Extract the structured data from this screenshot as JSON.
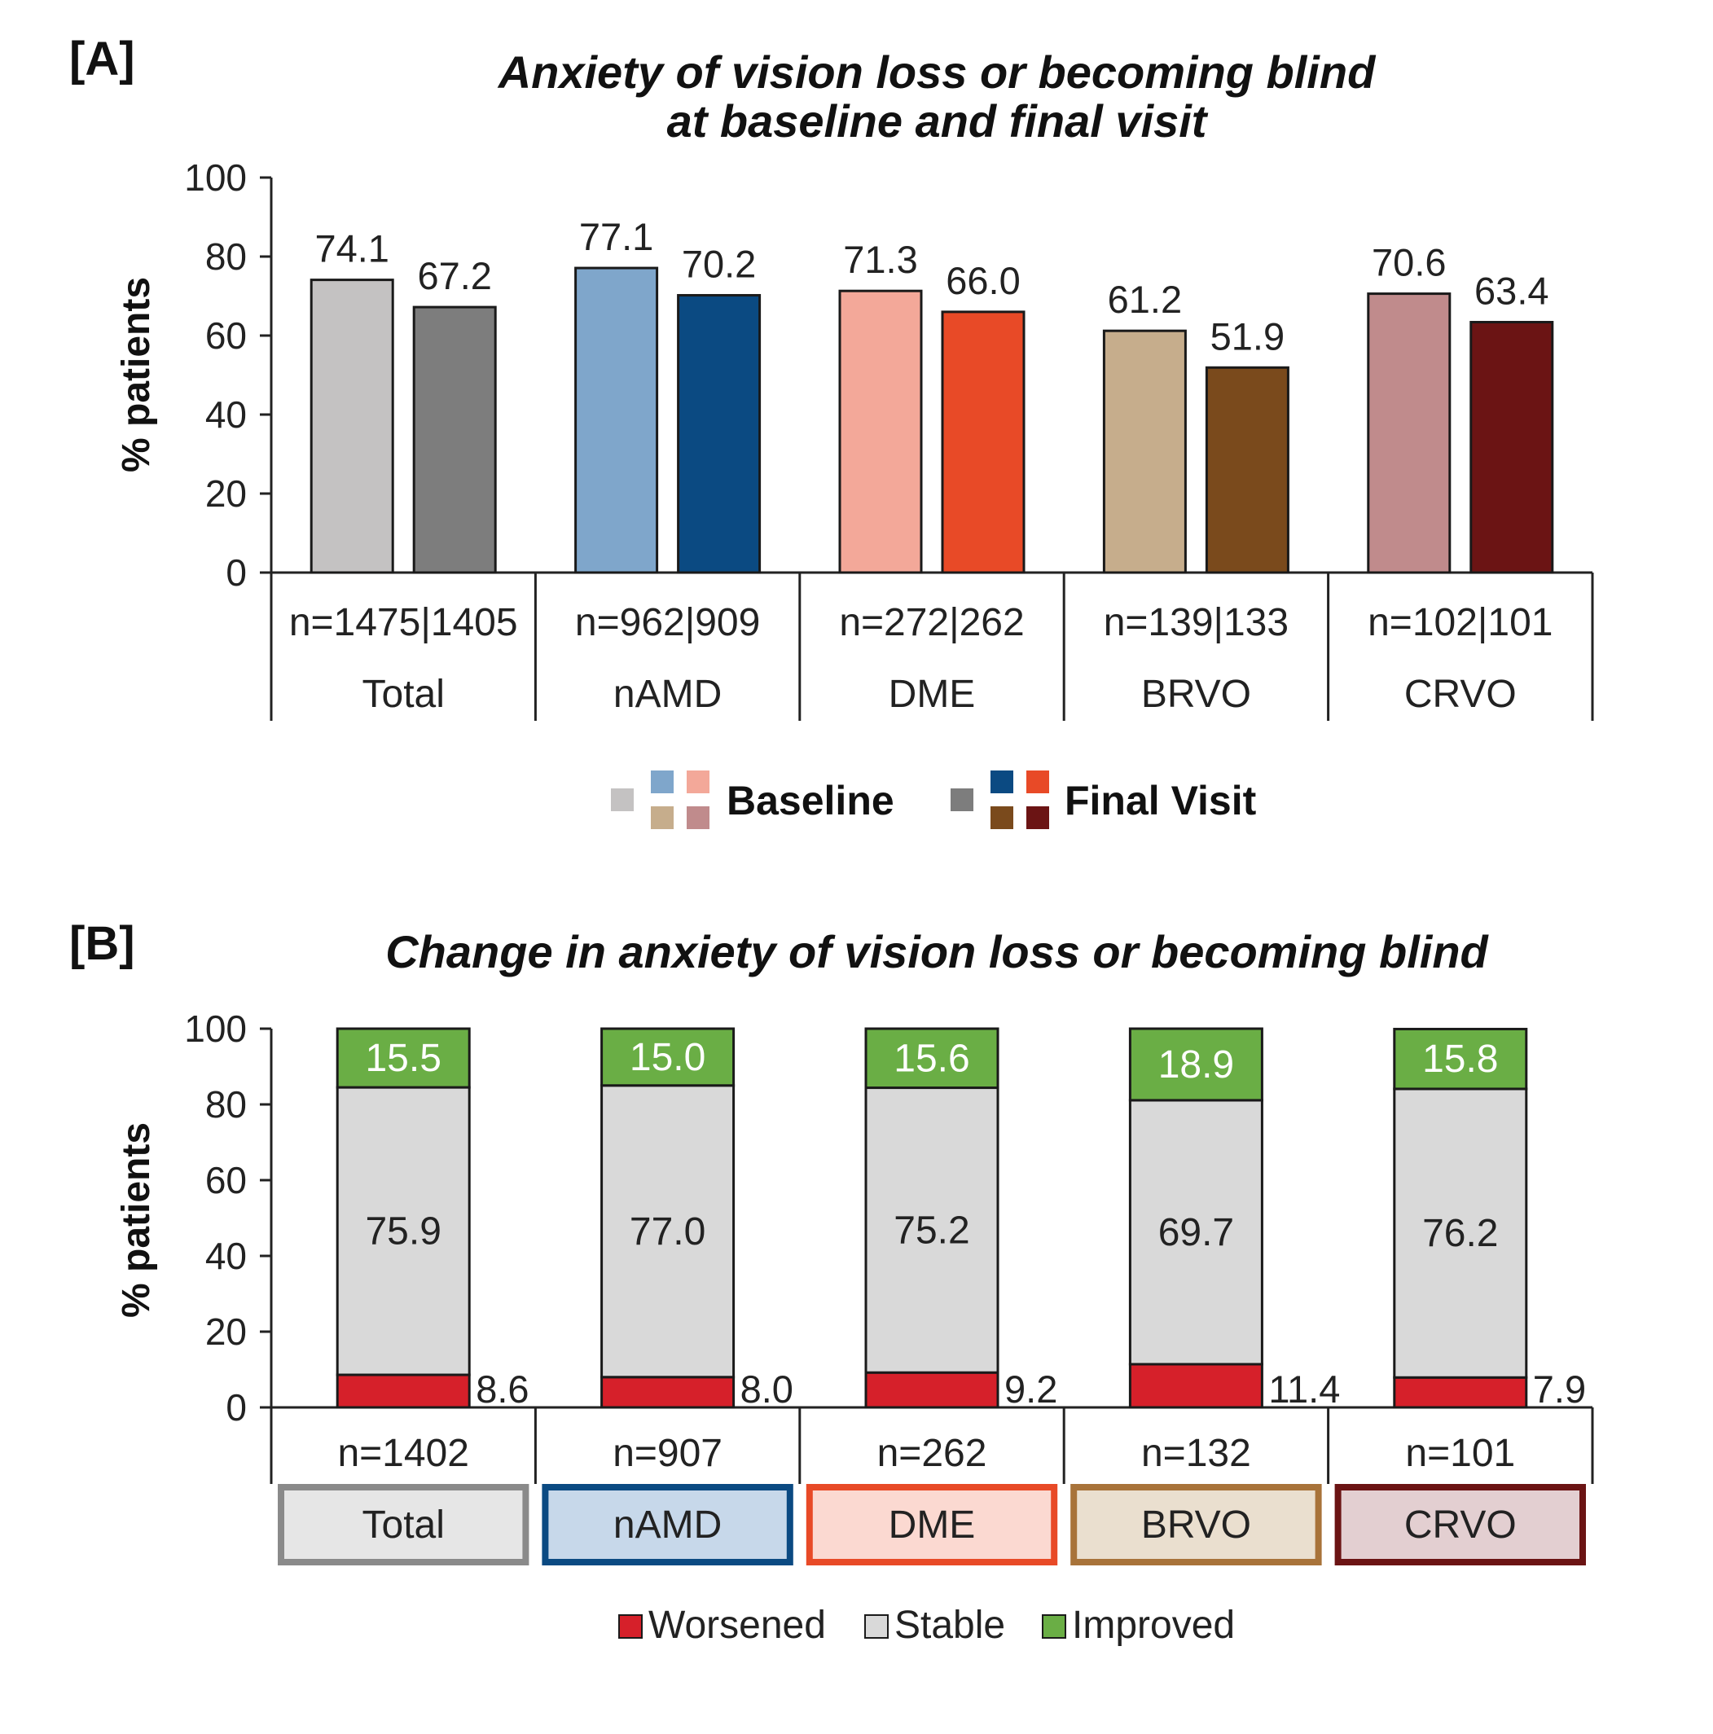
{
  "panel_a_tag": "[A]",
  "panel_b_tag": "[B]",
  "chart_data": [
    {
      "type": "bar",
      "title": "Anxiety of vision loss or becoming blind at baseline and final visit",
      "title_lines": [
        "Anxiety of vision loss or becoming blind",
        "at baseline and final visit"
      ],
      "ylabel": "% patients",
      "ylim": [
        0,
        100
      ],
      "yticks": [
        0,
        20,
        40,
        60,
        80,
        100
      ],
      "grid": false,
      "categories": [
        "Total",
        "nAMD",
        "DME",
        "BRVO",
        "CRVO"
      ],
      "sample_sizes": [
        "n=1475|1405",
        "n=962|909",
        "n=272|262",
        "n=139|133",
        "n=102|101"
      ],
      "series": [
        {
          "name": "Baseline",
          "values": [
            74.1,
            77.1,
            71.3,
            61.2,
            70.6
          ],
          "labels": [
            "74.1",
            "77.1",
            "71.3",
            "61.2",
            "70.6"
          ],
          "colors": [
            "#c4c2c2",
            "#7fa6cb",
            "#f3a899",
            "#c6ad8c",
            "#c08b8c"
          ]
        },
        {
          "name": "Final Visit",
          "values": [
            67.2,
            70.2,
            66.0,
            51.9,
            63.4
          ],
          "labels": [
            "67.2",
            "70.2",
            "66.0",
            "51.9",
            "63.4"
          ],
          "colors": [
            "#7d7d7d",
            "#0b4a82",
            "#e84a27",
            "#7a4a1c",
            "#6b1414"
          ]
        }
      ],
      "legend_position": "bottom"
    },
    {
      "type": "bar",
      "stacked": true,
      "title": "Change in anxiety of vision loss or becoming blind",
      "ylabel": "% patients",
      "ylim": [
        0,
        100
      ],
      "yticks": [
        0,
        20,
        40,
        60,
        80,
        100
      ],
      "grid": false,
      "categories": [
        "Total",
        "nAMD",
        "DME",
        "BRVO",
        "CRVO"
      ],
      "sample_sizes": [
        "n=1402",
        "n=907",
        "n=262",
        "n=132",
        "n=101"
      ],
      "category_colors": {
        "fill": [
          "#e6e6e6",
          "#c7d8ea",
          "#fbd9d1",
          "#eadfcf",
          "#e3cfd1"
        ],
        "border": [
          "#8a8a8a",
          "#0b4a82",
          "#e84a27",
          "#a8733a",
          "#6b1414"
        ]
      },
      "series": [
        {
          "name": "Worsened",
          "values": [
            8.6,
            8.0,
            9.2,
            11.4,
            7.9
          ],
          "labels": [
            "8.6",
            "8.0",
            "9.2",
            "11.4",
            "7.9"
          ],
          "color": "#d6202a"
        },
        {
          "name": "Stable",
          "values": [
            75.9,
            77.0,
            75.2,
            69.7,
            76.2
          ],
          "labels": [
            "75.9",
            "77.0",
            "75.2",
            "69.7",
            "76.2"
          ],
          "color": "#d9d9d9"
        },
        {
          "name": "Improved",
          "values": [
            15.5,
            15.0,
            15.6,
            18.9,
            15.8
          ],
          "labels": [
            "15.5",
            "15.0",
            "15.6",
            "18.9",
            "15.8"
          ],
          "color": "#6aae45"
        }
      ],
      "legend_position": "bottom"
    }
  ]
}
